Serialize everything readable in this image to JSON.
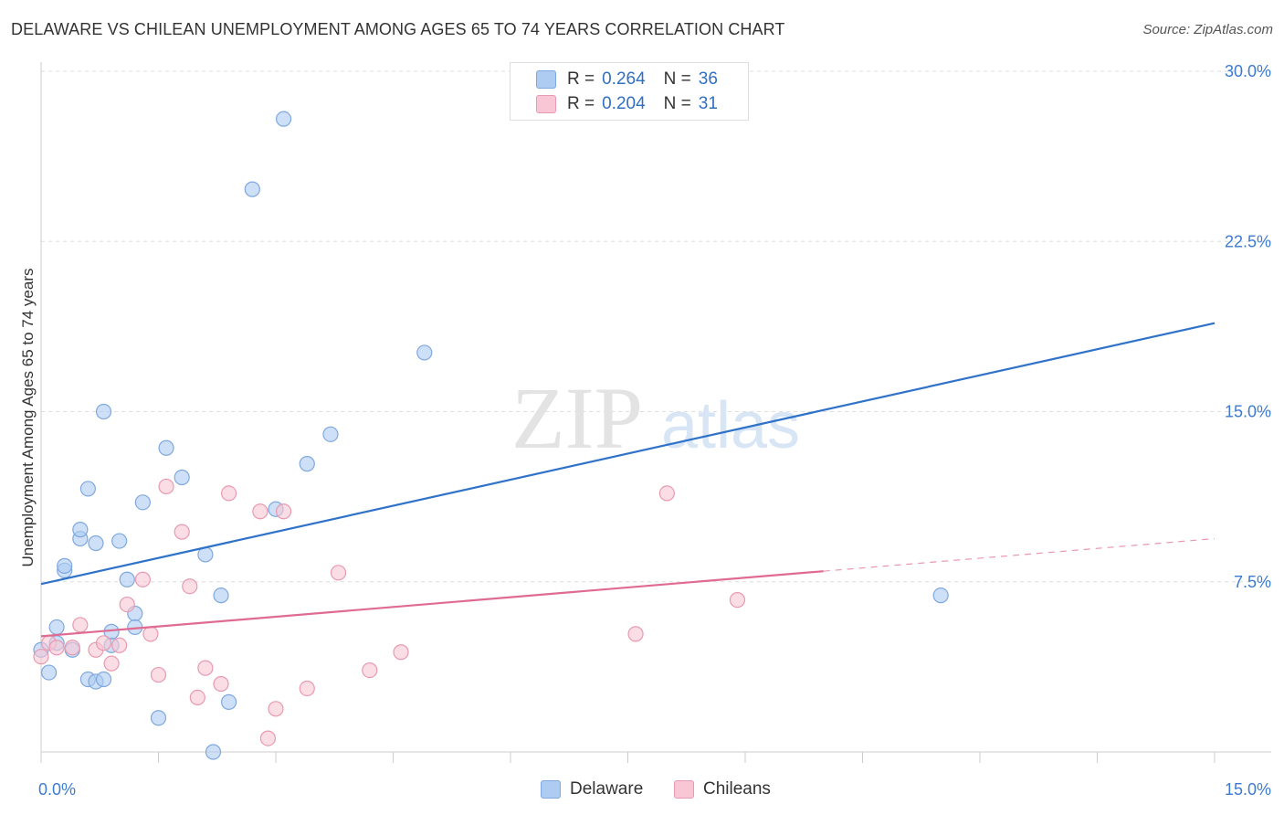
{
  "title": "DELAWARE VS CHILEAN UNEMPLOYMENT AMONG AGES 65 TO 74 YEARS CORRELATION CHART",
  "source": "Source: ZipAtlas.com",
  "watermark": {
    "zip": "ZIP",
    "atlas": "atlas"
  },
  "legend": {
    "rows": [
      {
        "r_label": "R =",
        "r_value": "0.264",
        "n_label": "N =",
        "n_value": "36",
        "color": "#aecbf2",
        "border": "#7fa8de"
      },
      {
        "r_label": "R =",
        "r_value": "0.204",
        "n_label": "N =",
        "n_value": "31",
        "color": "#f8c6d4",
        "border": "#e79ab1"
      }
    ]
  },
  "bottom_legend": [
    {
      "label": "Delaware",
      "color": "#aecbf2",
      "border": "#7fa8de"
    },
    {
      "label": "Chileans",
      "color": "#f8c6d4",
      "border": "#e79ab1"
    }
  ],
  "chart_data": {
    "type": "scatter",
    "title": "DELAWARE VS CHILEAN UNEMPLOYMENT AMONG AGES 65 TO 74 YEARS CORRELATION CHART",
    "xlabel": "",
    "ylabel": "Unemployment Among Ages 65 to 74 years",
    "xlim": [
      0,
      15
    ],
    "ylim": [
      0,
      30
    ],
    "x_tick_labels": [
      {
        "value": 0,
        "label": "0.0%"
      },
      {
        "value": 15,
        "label": "15.0%"
      }
    ],
    "y_tick_labels": [
      {
        "value": 7.5,
        "label": "7.5%"
      },
      {
        "value": 15,
        "label": "15.0%"
      },
      {
        "value": 22.5,
        "label": "22.5%"
      },
      {
        "value": 30,
        "label": "30.0%"
      }
    ],
    "grid": true,
    "legend_position": "top-center",
    "series": [
      {
        "name": "Delaware",
        "color": "#aecbf2",
        "edge": "#7fa8de",
        "trend_color": "#2f72c9",
        "trend": {
          "x": [
            0,
            15
          ],
          "y": [
            7.4,
            18.9
          ],
          "dashed_from": 15
        },
        "points": [
          [
            0.0,
            4.5
          ],
          [
            0.1,
            3.5
          ],
          [
            0.2,
            4.8
          ],
          [
            0.2,
            5.5
          ],
          [
            0.3,
            8.0
          ],
          [
            0.3,
            8.2
          ],
          [
            0.4,
            4.5
          ],
          [
            0.5,
            9.4
          ],
          [
            0.5,
            9.8
          ],
          [
            0.6,
            3.2
          ],
          [
            0.6,
            11.6
          ],
          [
            0.7,
            3.1
          ],
          [
            0.7,
            9.2
          ],
          [
            0.8,
            3.2
          ],
          [
            0.8,
            15.0
          ],
          [
            0.9,
            4.7
          ],
          [
            0.9,
            5.3
          ],
          [
            1.0,
            9.3
          ],
          [
            1.1,
            7.6
          ],
          [
            1.2,
            6.1
          ],
          [
            1.2,
            5.5
          ],
          [
            1.3,
            11.0
          ],
          [
            1.5,
            1.5
          ],
          [
            1.6,
            13.4
          ],
          [
            1.8,
            12.1
          ],
          [
            2.1,
            8.7
          ],
          [
            2.2,
            0.0
          ],
          [
            2.3,
            6.9
          ],
          [
            2.4,
            2.2
          ],
          [
            2.7,
            24.8
          ],
          [
            3.0,
            10.7
          ],
          [
            3.1,
            27.9
          ],
          [
            3.4,
            12.7
          ],
          [
            3.7,
            14.0
          ],
          [
            4.9,
            17.6
          ],
          [
            11.5,
            6.9
          ]
        ]
      },
      {
        "name": "Chileans",
        "color": "#f8c6d4",
        "edge": "#e79ab1",
        "trend_color": "#e06b92",
        "trend": {
          "x": [
            0,
            15
          ],
          "y": [
            5.1,
            9.4
          ],
          "dashed_from": 10.0
        },
        "points": [
          [
            0.0,
            4.2
          ],
          [
            0.1,
            4.8
          ],
          [
            0.2,
            4.6
          ],
          [
            0.4,
            4.6
          ],
          [
            0.5,
            5.6
          ],
          [
            0.7,
            4.5
          ],
          [
            0.8,
            4.8
          ],
          [
            0.9,
            3.9
          ],
          [
            1.0,
            4.7
          ],
          [
            1.1,
            6.5
          ],
          [
            1.3,
            7.6
          ],
          [
            1.4,
            5.2
          ],
          [
            1.5,
            3.4
          ],
          [
            1.6,
            11.7
          ],
          [
            1.8,
            9.7
          ],
          [
            1.9,
            7.3
          ],
          [
            2.0,
            2.4
          ],
          [
            2.1,
            3.7
          ],
          [
            2.3,
            3.0
          ],
          [
            2.4,
            11.4
          ],
          [
            2.8,
            10.6
          ],
          [
            2.9,
            0.6
          ],
          [
            3.0,
            1.9
          ],
          [
            3.1,
            10.6
          ],
          [
            3.4,
            2.8
          ],
          [
            3.8,
            7.9
          ],
          [
            4.2,
            3.6
          ],
          [
            4.6,
            4.4
          ],
          [
            7.6,
            5.2
          ],
          [
            8.0,
            11.4
          ],
          [
            8.9,
            6.7
          ]
        ]
      }
    ]
  }
}
